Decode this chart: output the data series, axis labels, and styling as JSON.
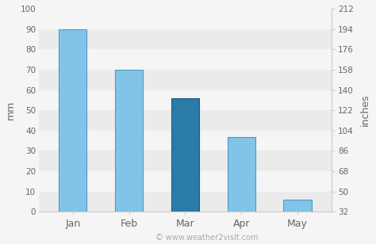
{
  "categories": [
    "Jan",
    "Feb",
    "Mar",
    "Apr",
    "May"
  ],
  "values_mm": [
    90,
    70,
    56,
    37,
    6
  ],
  "bar_colors": [
    "#82C4E8",
    "#82C4E8",
    "#2B7BA8",
    "#82C4E8",
    "#82C4E8"
  ],
  "bar_edgecolors": [
    "#4a9ac4",
    "#4a9ac4",
    "#1a5a80",
    "#4a9ac4",
    "#4a9ac4"
  ],
  "ylabel_left": "mm",
  "ylabel_right": "inches",
  "ylim_mm": [
    0,
    100
  ],
  "yticks_mm": [
    0,
    10,
    20,
    30,
    40,
    50,
    60,
    70,
    80,
    90,
    100
  ],
  "yticks_inches": [
    "32",
    "50",
    "68",
    "86",
    "104",
    "122",
    "140",
    "158",
    "176",
    "194",
    "212"
  ],
  "band_colors": [
    "#ebebeb",
    "#f5f5f5"
  ],
  "outer_bg": "#f5f5f5",
  "grid_color": "#ffffff",
  "watermark": "© www.weather2visit.com",
  "tick_label_color": "#666666",
  "axis_label_color": "#666666",
  "watermark_color": "#aaaaaa",
  "bar_width": 0.5
}
